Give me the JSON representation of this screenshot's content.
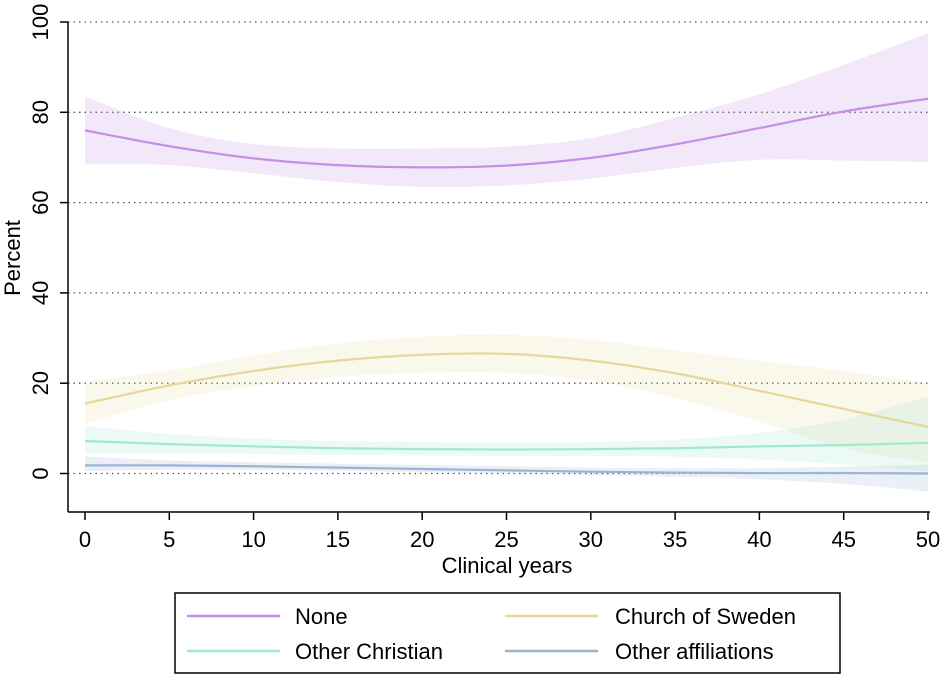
{
  "chart_data": {
    "type": "line",
    "xlabel": "Clinical years",
    "ylabel": "Percent",
    "xlim": [
      0,
      50
    ],
    "ylim": [
      0,
      100
    ],
    "x_ticks": [
      0,
      5,
      10,
      15,
      20,
      25,
      30,
      35,
      40,
      45,
      50
    ],
    "y_ticks": [
      0,
      20,
      40,
      60,
      80,
      100
    ],
    "x_tick_labels": [
      "0",
      "5",
      "10",
      "15",
      "20",
      "25",
      "30",
      "35",
      "40",
      "45",
      "50"
    ],
    "y_tick_labels": [
      "0",
      "20",
      "40",
      "60",
      "80",
      "100"
    ],
    "grid": "horizontal dotted",
    "legend_position": "bottom",
    "x": [
      0,
      5,
      10,
      15,
      20,
      25,
      30,
      35,
      40,
      45,
      50
    ],
    "series": [
      {
        "name": "None",
        "color": "#c58ee8",
        "band_color": "#eedffa",
        "values": [
          76,
          72.5,
          69.8,
          68.3,
          67.8,
          68.2,
          69.9,
          72.9,
          76.5,
          80.2,
          83
        ],
        "lower": [
          68.5,
          68.3,
          66.5,
          64.5,
          63.5,
          63.8,
          65.3,
          67.7,
          69.5,
          69.3,
          69
        ],
        "upper": [
          83.5,
          76.5,
          73,
          72,
          72,
          72.4,
          74.3,
          78.8,
          84,
          90.5,
          97.5
        ]
      },
      {
        "name": "Church of Sweden",
        "color": "#e8d69a",
        "band_color": "#f7f2dd",
        "values": [
          15.5,
          19.5,
          22.7,
          25,
          26.3,
          26.5,
          25,
          22.2,
          18.3,
          14.3,
          10.3
        ],
        "lower": [
          11,
          16.3,
          19.3,
          21.4,
          22.3,
          22.3,
          20.5,
          16.7,
          11.5,
          5.5,
          2.5
        ],
        "upper": [
          20.5,
          22.8,
          26.2,
          28.8,
          30.3,
          30.7,
          29.6,
          27.3,
          25,
          22.7,
          20
        ]
      },
      {
        "name": "Other Christian",
        "color": "#9fe8d2",
        "band_color": "#def7ef",
        "values": [
          7.2,
          6.5,
          6,
          5.6,
          5.4,
          5.3,
          5.4,
          5.6,
          6,
          6.3,
          6.8
        ],
        "lower": [
          4.5,
          4.5,
          4.3,
          4.1,
          4,
          3.9,
          3.9,
          3.7,
          3.1,
          2,
          0.5
        ],
        "upper": [
          10.5,
          8.8,
          7.7,
          7.2,
          7,
          6.9,
          7,
          7.5,
          9,
          12,
          17
        ]
      },
      {
        "name": "Other affiliations",
        "color": "#9ab4d4",
        "band_color": "#e2e8f2",
        "values": [
          1.8,
          1.8,
          1.6,
          1.3,
          1,
          0.7,
          0.4,
          0.2,
          0.1,
          0.1,
          0
        ],
        "lower": [
          0.5,
          0.8,
          0.8,
          0.6,
          0.3,
          0,
          -0.3,
          -0.7,
          -1.3,
          -2.3,
          -4
        ],
        "upper": [
          3.8,
          2.9,
          2.5,
          2.2,
          1.9,
          1.6,
          1.3,
          1.2,
          1.2,
          1.5,
          2
        ]
      }
    ]
  }
}
